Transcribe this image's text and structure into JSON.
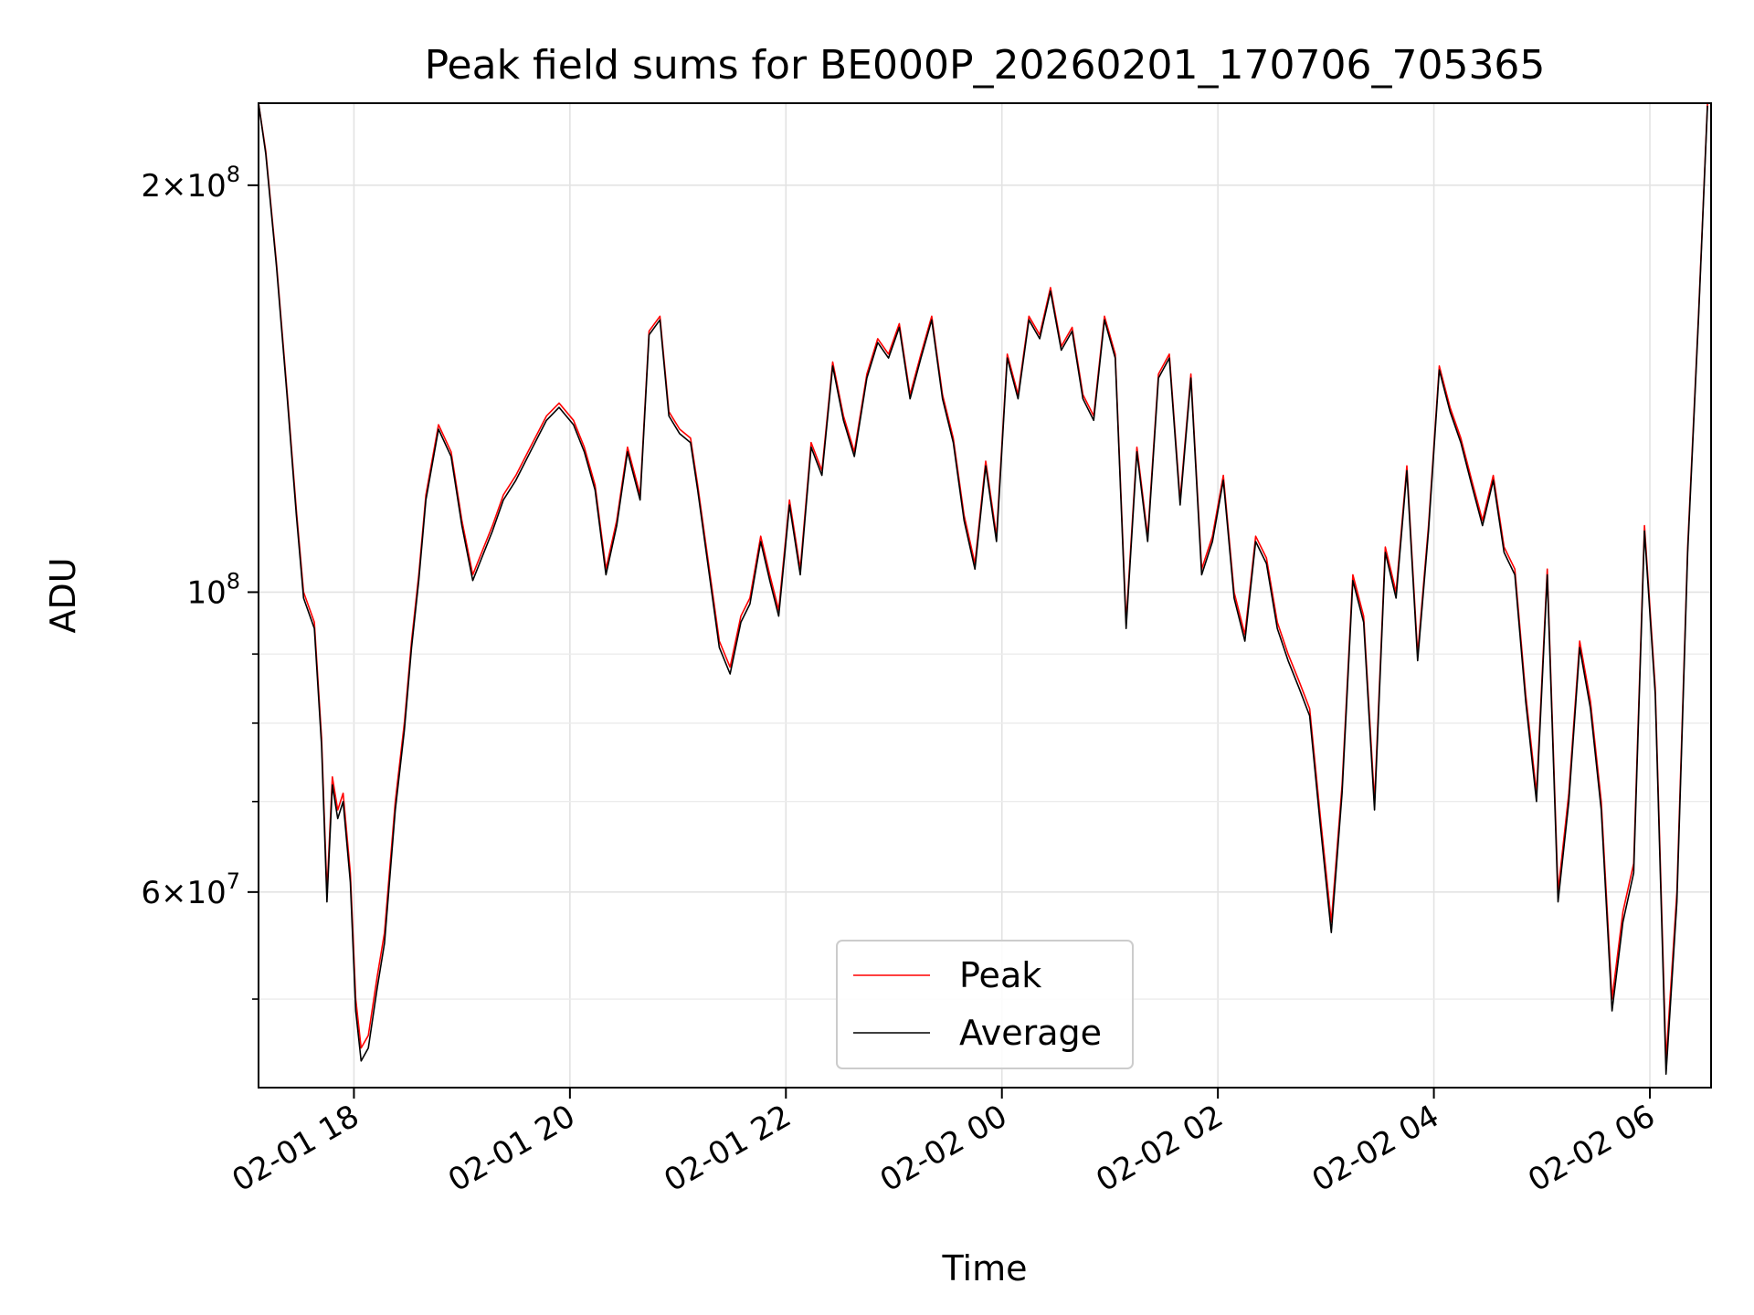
{
  "chart_data": {
    "type": "line",
    "title": "Peak field sums for BE000P_20260201_170706_705365",
    "xlabel": "Time",
    "ylabel": "ADU",
    "yscale": "log",
    "xlim": [
      "2026-02-01 17:07",
      "2026-02-02 06:34"
    ],
    "ylim": [
      43000000,
      230000000
    ],
    "grid": true,
    "legend_position": "lower-center",
    "x_ticks": [
      {
        "value": "2026-02-01 18:00",
        "label": "02-01 18"
      },
      {
        "value": "2026-02-01 20:00",
        "label": "02-01 20"
      },
      {
        "value": "2026-02-01 22:00",
        "label": "02-01 22"
      },
      {
        "value": "2026-02-02 00:00",
        "label": "02-02 00"
      },
      {
        "value": "2026-02-02 02:00",
        "label": "02-02 02"
      },
      {
        "value": "2026-02-02 04:00",
        "label": "02-02 04"
      },
      {
        "value": "2026-02-02 06:00",
        "label": "02-02 06"
      }
    ],
    "y_major_ticks": [
      {
        "value": 200000000,
        "mantissa": "2",
        "exponent": "8"
      },
      {
        "value": 100000000,
        "mantissa": "",
        "exponent": "8"
      },
      {
        "value": 60000000,
        "mantissa": "6",
        "exponent": "7"
      }
    ],
    "y_minor_ticks": [
      50000000,
      70000000,
      80000000,
      90000000
    ],
    "series": [
      {
        "name": "Peak",
        "color": "#ff0000",
        "x": [
          "2026-02-01 17:07",
          "2026-02-01 17:11",
          "2026-02-01 17:17",
          "2026-02-01 17:23",
          "2026-02-01 17:28",
          "2026-02-01 17:32",
          "2026-02-01 17:38",
          "2026-02-01 17:42",
          "2026-02-01 17:45",
          "2026-02-01 17:48",
          "2026-02-01 17:51",
          "2026-02-01 17:54",
          "2026-02-01 17:58",
          "2026-02-01 18:01",
          "2026-02-01 18:04",
          "2026-02-01 18:08",
          "2026-02-01 18:13",
          "2026-02-01 18:17",
          "2026-02-01 18:23",
          "2026-02-01 18:28",
          "2026-02-01 18:32",
          "2026-02-01 18:36",
          "2026-02-01 18:40",
          "2026-02-01 18:47",
          "2026-02-01 18:54",
          "2026-02-01 19:00",
          "2026-02-01 19:06",
          "2026-02-01 19:11",
          "2026-02-01 19:17",
          "2026-02-01 19:23",
          "2026-02-01 19:30",
          "2026-02-01 19:38",
          "2026-02-01 19:47",
          "2026-02-01 19:54",
          "2026-02-01 20:02",
          "2026-02-01 20:08",
          "2026-02-01 20:14",
          "2026-02-01 20:20",
          "2026-02-01 20:26",
          "2026-02-01 20:32",
          "2026-02-01 20:39",
          "2026-02-01 20:44",
          "2026-02-01 20:50",
          "2026-02-01 20:55",
          "2026-02-01 21:01",
          "2026-02-01 21:07",
          "2026-02-01 21:11",
          "2026-02-01 21:17",
          "2026-02-01 21:23",
          "2026-02-01 21:29",
          "2026-02-01 21:35",
          "2026-02-01 21:40",
          "2026-02-01 21:46",
          "2026-02-01 21:51",
          "2026-02-01 21:56",
          "2026-02-01 22:02",
          "2026-02-01 22:08",
          "2026-02-01 22:14",
          "2026-02-01 22:20",
          "2026-02-01 22:26",
          "2026-02-01 22:32",
          "2026-02-01 22:38",
          "2026-02-01 22:45",
          "2026-02-01 22:51",
          "2026-02-01 22:57",
          "2026-02-01 23:03",
          "2026-02-01 23:09",
          "2026-02-01 23:15",
          "2026-02-01 23:21",
          "2026-02-01 23:27",
          "2026-02-01 23:33",
          "2026-02-01 23:39",
          "2026-02-01 23:45",
          "2026-02-01 23:51",
          "2026-02-01 23:57",
          "2026-02-02 00:03",
          "2026-02-02 00:09",
          "2026-02-02 00:15",
          "2026-02-02 00:21",
          "2026-02-02 00:27",
          "2026-02-02 00:33",
          "2026-02-02 00:39",
          "2026-02-02 00:45",
          "2026-02-02 00:51",
          "2026-02-02 00:57",
          "2026-02-02 01:03",
          "2026-02-02 01:09",
          "2026-02-02 01:15",
          "2026-02-02 01:21",
          "2026-02-02 01:27",
          "2026-02-02 01:33",
          "2026-02-02 01:39",
          "2026-02-02 01:45",
          "2026-02-02 01:51",
          "2026-02-02 01:57",
          "2026-02-02 02:03",
          "2026-02-02 02:09",
          "2026-02-02 02:15",
          "2026-02-02 02:21",
          "2026-02-02 02:27",
          "2026-02-02 02:33",
          "2026-02-02 02:39",
          "2026-02-02 02:45",
          "2026-02-02 02:51",
          "2026-02-02 02:57",
          "2026-02-02 03:03",
          "2026-02-02 03:09",
          "2026-02-02 03:15",
          "2026-02-02 03:21",
          "2026-02-02 03:27",
          "2026-02-02 03:33",
          "2026-02-02 03:39",
          "2026-02-02 03:45",
          "2026-02-02 03:51",
          "2026-02-02 03:57",
          "2026-02-02 04:03",
          "2026-02-02 04:09",
          "2026-02-02 04:15",
          "2026-02-02 04:21",
          "2026-02-02 04:27",
          "2026-02-02 04:33",
          "2026-02-02 04:39",
          "2026-02-02 04:45",
          "2026-02-02 04:51",
          "2026-02-02 04:57",
          "2026-02-02 05:03",
          "2026-02-02 05:09",
          "2026-02-02 05:15",
          "2026-02-02 05:21",
          "2026-02-02 05:27",
          "2026-02-02 05:33",
          "2026-02-02 05:39",
          "2026-02-02 05:45",
          "2026-02-02 05:51",
          "2026-02-02 05:57",
          "2026-02-02 06:03",
          "2026-02-02 06:09",
          "2026-02-02 06:15",
          "2026-02-02 06:21",
          "2026-02-02 06:27",
          "2026-02-02 06:32"
        ],
        "values": [
          230000000,
          212000000,
          175000000,
          140000000,
          115000000,
          100000000,
          95000000,
          78000000,
          60000000,
          73000000,
          69000000,
          71000000,
          62000000,
          50000000,
          46000000,
          47000000,
          52000000,
          56000000,
          70000000,
          80000000,
          92000000,
          103000000,
          118000000,
          133000000,
          127000000,
          113000000,
          103000000,
          107000000,
          112000000,
          118000000,
          122000000,
          128000000,
          135000000,
          138000000,
          134000000,
          128000000,
          120000000,
          104000000,
          113000000,
          128000000,
          118000000,
          156000000,
          160000000,
          136000000,
          132000000,
          130000000,
          120000000,
          105000000,
          92000000,
          88000000,
          96000000,
          99000000,
          110000000,
          103000000,
          97000000,
          117000000,
          104000000,
          129000000,
          123000000,
          148000000,
          135000000,
          127000000,
          145000000,
          154000000,
          150000000,
          158000000,
          140000000,
          150000000,
          160000000,
          140000000,
          130000000,
          114000000,
          105000000,
          125000000,
          110000000,
          150000000,
          140000000,
          160000000,
          155000000,
          168000000,
          152000000,
          157000000,
          140000000,
          135000000,
          160000000,
          150000000,
          95000000,
          128000000,
          110000000,
          145000000,
          150000000,
          117000000,
          145000000,
          104000000,
          110000000,
          122000000,
          100000000,
          93000000,
          110000000,
          106000000,
          95000000,
          90000000,
          86000000,
          82000000,
          68000000,
          57000000,
          72000000,
          103000000,
          96000000,
          70000000,
          108000000,
          100000000,
          124000000,
          90000000,
          112000000,
          147000000,
          137000000,
          130000000,
          121000000,
          113000000,
          122000000,
          108000000,
          104000000,
          84000000,
          71000000,
          104000000,
          60000000,
          71000000,
          92000000,
          83000000,
          70000000,
          50000000,
          58000000,
          63000000,
          112000000,
          85000000,
          45000000,
          60000000,
          108000000,
          160000000,
          230000000
        ]
      },
      {
        "name": "Average",
        "color": "#000000",
        "x": [
          "2026-02-01 17:07",
          "2026-02-01 17:11",
          "2026-02-01 17:17",
          "2026-02-01 17:23",
          "2026-02-01 17:28",
          "2026-02-01 17:32",
          "2026-02-01 17:38",
          "2026-02-01 17:42",
          "2026-02-01 17:45",
          "2026-02-01 17:48",
          "2026-02-01 17:51",
          "2026-02-01 17:54",
          "2026-02-01 17:58",
          "2026-02-01 18:01",
          "2026-02-01 18:04",
          "2026-02-01 18:08",
          "2026-02-01 18:13",
          "2026-02-01 18:17",
          "2026-02-01 18:23",
          "2026-02-01 18:28",
          "2026-02-01 18:32",
          "2026-02-01 18:36",
          "2026-02-01 18:40",
          "2026-02-01 18:47",
          "2026-02-01 18:54",
          "2026-02-01 19:00",
          "2026-02-01 19:06",
          "2026-02-01 19:11",
          "2026-02-01 19:17",
          "2026-02-01 19:23",
          "2026-02-01 19:30",
          "2026-02-01 19:38",
          "2026-02-01 19:47",
          "2026-02-01 19:54",
          "2026-02-01 20:02",
          "2026-02-01 20:08",
          "2026-02-01 20:14",
          "2026-02-01 20:20",
          "2026-02-01 20:26",
          "2026-02-01 20:32",
          "2026-02-01 20:39",
          "2026-02-01 20:44",
          "2026-02-01 20:50",
          "2026-02-01 20:55",
          "2026-02-01 21:01",
          "2026-02-01 21:07",
          "2026-02-01 21:11",
          "2026-02-01 21:17",
          "2026-02-01 21:23",
          "2026-02-01 21:29",
          "2026-02-01 21:35",
          "2026-02-01 21:40",
          "2026-02-01 21:46",
          "2026-02-01 21:51",
          "2026-02-01 21:56",
          "2026-02-01 22:02",
          "2026-02-01 22:08",
          "2026-02-01 22:14",
          "2026-02-01 22:20",
          "2026-02-01 22:26",
          "2026-02-01 22:32",
          "2026-02-01 22:38",
          "2026-02-01 22:45",
          "2026-02-01 22:51",
          "2026-02-01 22:57",
          "2026-02-01 23:03",
          "2026-02-01 23:09",
          "2026-02-01 23:15",
          "2026-02-01 23:21",
          "2026-02-01 23:27",
          "2026-02-01 23:33",
          "2026-02-01 23:39",
          "2026-02-01 23:45",
          "2026-02-01 23:51",
          "2026-02-01 23:57",
          "2026-02-02 00:03",
          "2026-02-02 00:09",
          "2026-02-02 00:15",
          "2026-02-02 00:21",
          "2026-02-02 00:27",
          "2026-02-02 00:33",
          "2026-02-02 00:39",
          "2026-02-02 00:45",
          "2026-02-02 00:51",
          "2026-02-02 00:57",
          "2026-02-02 01:03",
          "2026-02-02 01:09",
          "2026-02-02 01:15",
          "2026-02-02 01:21",
          "2026-02-02 01:27",
          "2026-02-02 01:33",
          "2026-02-02 01:39",
          "2026-02-02 01:45",
          "2026-02-02 01:51",
          "2026-02-02 01:57",
          "2026-02-02 02:03",
          "2026-02-02 02:09",
          "2026-02-02 02:15",
          "2026-02-02 02:21",
          "2026-02-02 02:27",
          "2026-02-02 02:33",
          "2026-02-02 02:39",
          "2026-02-02 02:45",
          "2026-02-02 02:51",
          "2026-02-02 02:57",
          "2026-02-02 03:03",
          "2026-02-02 03:09",
          "2026-02-02 03:15",
          "2026-02-02 03:21",
          "2026-02-02 03:27",
          "2026-02-02 03:33",
          "2026-02-02 03:39",
          "2026-02-02 03:45",
          "2026-02-02 03:51",
          "2026-02-02 03:57",
          "2026-02-02 04:03",
          "2026-02-02 04:09",
          "2026-02-02 04:15",
          "2026-02-02 04:21",
          "2026-02-02 04:27",
          "2026-02-02 04:33",
          "2026-02-02 04:39",
          "2026-02-02 04:45",
          "2026-02-02 04:51",
          "2026-02-02 04:57",
          "2026-02-02 05:03",
          "2026-02-02 05:09",
          "2026-02-02 05:15",
          "2026-02-02 05:21",
          "2026-02-02 05:27",
          "2026-02-02 05:33",
          "2026-02-02 05:39",
          "2026-02-02 05:45",
          "2026-02-02 05:51",
          "2026-02-02 05:57",
          "2026-02-02 06:03",
          "2026-02-02 06:09",
          "2026-02-02 06:15",
          "2026-02-02 06:21",
          "2026-02-02 06:27",
          "2026-02-02 06:32"
        ],
        "values": [
          230000000,
          211000000,
          174000000,
          139000000,
          114000000,
          99000000,
          94000000,
          77000000,
          59000000,
          72000000,
          68000000,
          70000000,
          61000000,
          49000000,
          45000000,
          46000000,
          51000000,
          55000000,
          69000000,
          79000000,
          91000000,
          102000000,
          117000000,
          132000000,
          126000000,
          112000000,
          102000000,
          106000000,
          111000000,
          117000000,
          121000000,
          127000000,
          134000000,
          137000000,
          133000000,
          127000000,
          119000000,
          103000000,
          112000000,
          127000000,
          117000000,
          155000000,
          159000000,
          135000000,
          131000000,
          129000000,
          119000000,
          104000000,
          91000000,
          87000000,
          95000000,
          98000000,
          109000000,
          102000000,
          96000000,
          116000000,
          103000000,
          128000000,
          122000000,
          147000000,
          134000000,
          126000000,
          144000000,
          153000000,
          149000000,
          157000000,
          139000000,
          149000000,
          159000000,
          139000000,
          129000000,
          113000000,
          104000000,
          124000000,
          109000000,
          149000000,
          139000000,
          159000000,
          154000000,
          167000000,
          151000000,
          156000000,
          139000000,
          134000000,
          159000000,
          149000000,
          94000000,
          127000000,
          109000000,
          144000000,
          149000000,
          116000000,
          144000000,
          103000000,
          109000000,
          121000000,
          99000000,
          92000000,
          109000000,
          105000000,
          94000000,
          89000000,
          85000000,
          81000000,
          67000000,
          56000000,
          71000000,
          102000000,
          95000000,
          69000000,
          107000000,
          99000000,
          123000000,
          89000000,
          111000000,
          146000000,
          136000000,
          129000000,
          120000000,
          112000000,
          121000000,
          107000000,
          103000000,
          83000000,
          70000000,
          103000000,
          59000000,
          70000000,
          91000000,
          82000000,
          69000000,
          49000000,
          57000000,
          62000000,
          111000000,
          84000000,
          44000000,
          59000000,
          107000000,
          159000000,
          229000000
        ]
      }
    ]
  }
}
